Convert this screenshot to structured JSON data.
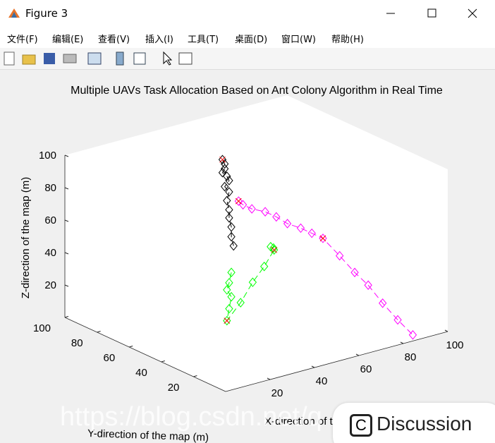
{
  "window": {
    "title": "Figure 3",
    "menu": [
      "文件(F)",
      "编辑(E)",
      "查看(V)",
      "插入(I)",
      "工具(T)",
      "桌面(D)",
      "窗口(W)",
      "帮助(H)"
    ]
  },
  "chart_data": {
    "type": "line3d",
    "title": "Multiple UAVs Task Allocation Based on Ant Colony Algorithm in Real Time",
    "xlabel": "X-direction of the map (m)",
    "ylabel": "Y-direction of the map (m)",
    "zlabel": "Z-direction of the map (m)",
    "xlim": [
      0,
      100
    ],
    "ylim": [
      0,
      100
    ],
    "zlim": [
      0,
      100
    ],
    "xticks": [
      20,
      40,
      60,
      80,
      100
    ],
    "yticks": [
      20,
      40,
      60,
      80,
      100
    ],
    "zticks": [
      20,
      40,
      60,
      80,
      100
    ],
    "series": [
      {
        "color": "#000000",
        "x": [
          42,
          43,
          43,
          42,
          44,
          45,
          43,
          45,
          44,
          45,
          45,
          46,
          46,
          47
        ],
        "y": [
          60,
          60,
          60,
          60,
          60,
          60,
          60,
          60,
          60,
          60,
          60,
          60,
          60,
          60
        ],
        "z": [
          100,
          97,
          94,
          92,
          89,
          86,
          83,
          79,
          74,
          68,
          63,
          57,
          51,
          45
        ]
      },
      {
        "color": "#ff00ff",
        "x": [
          42,
          44,
          48,
          54,
          59,
          64,
          70,
          75,
          80,
          81,
          82,
          83,
          83,
          84,
          85
        ],
        "y": [
          50,
          50,
          50,
          50,
          50,
          50,
          50,
          50,
          50,
          41,
          33,
          26,
          17,
          9,
          1
        ],
        "z": [
          79,
          76,
          72,
          68,
          63,
          57,
          52,
          47,
          42,
          35,
          28,
          23,
          16,
          9,
          3
        ]
      },
      {
        "color": "#00ff00",
        "x": [
          46,
          45,
          44,
          46,
          45,
          44,
          48,
          52,
          55,
          58,
          57,
          55
        ],
        "y": [
          60,
          60,
          60,
          60,
          60,
          60,
          57,
          55,
          52,
          50,
          49,
          48
        ],
        "z": [
          29,
          23,
          19,
          14,
          7,
          0,
          11,
          23,
          33,
          43,
          45,
          47
        ]
      }
    ],
    "markers": {
      "color": "#ff0000",
      "x": [
        42,
        42,
        80,
        44,
        58
      ],
      "y": [
        60,
        50,
        50,
        60,
        50
      ],
      "z": [
        100,
        79,
        42,
        0,
        43
      ]
    }
  },
  "overlay": {
    "watermark": "https://blog.csdn.net/q",
    "button": "Discussion"
  }
}
